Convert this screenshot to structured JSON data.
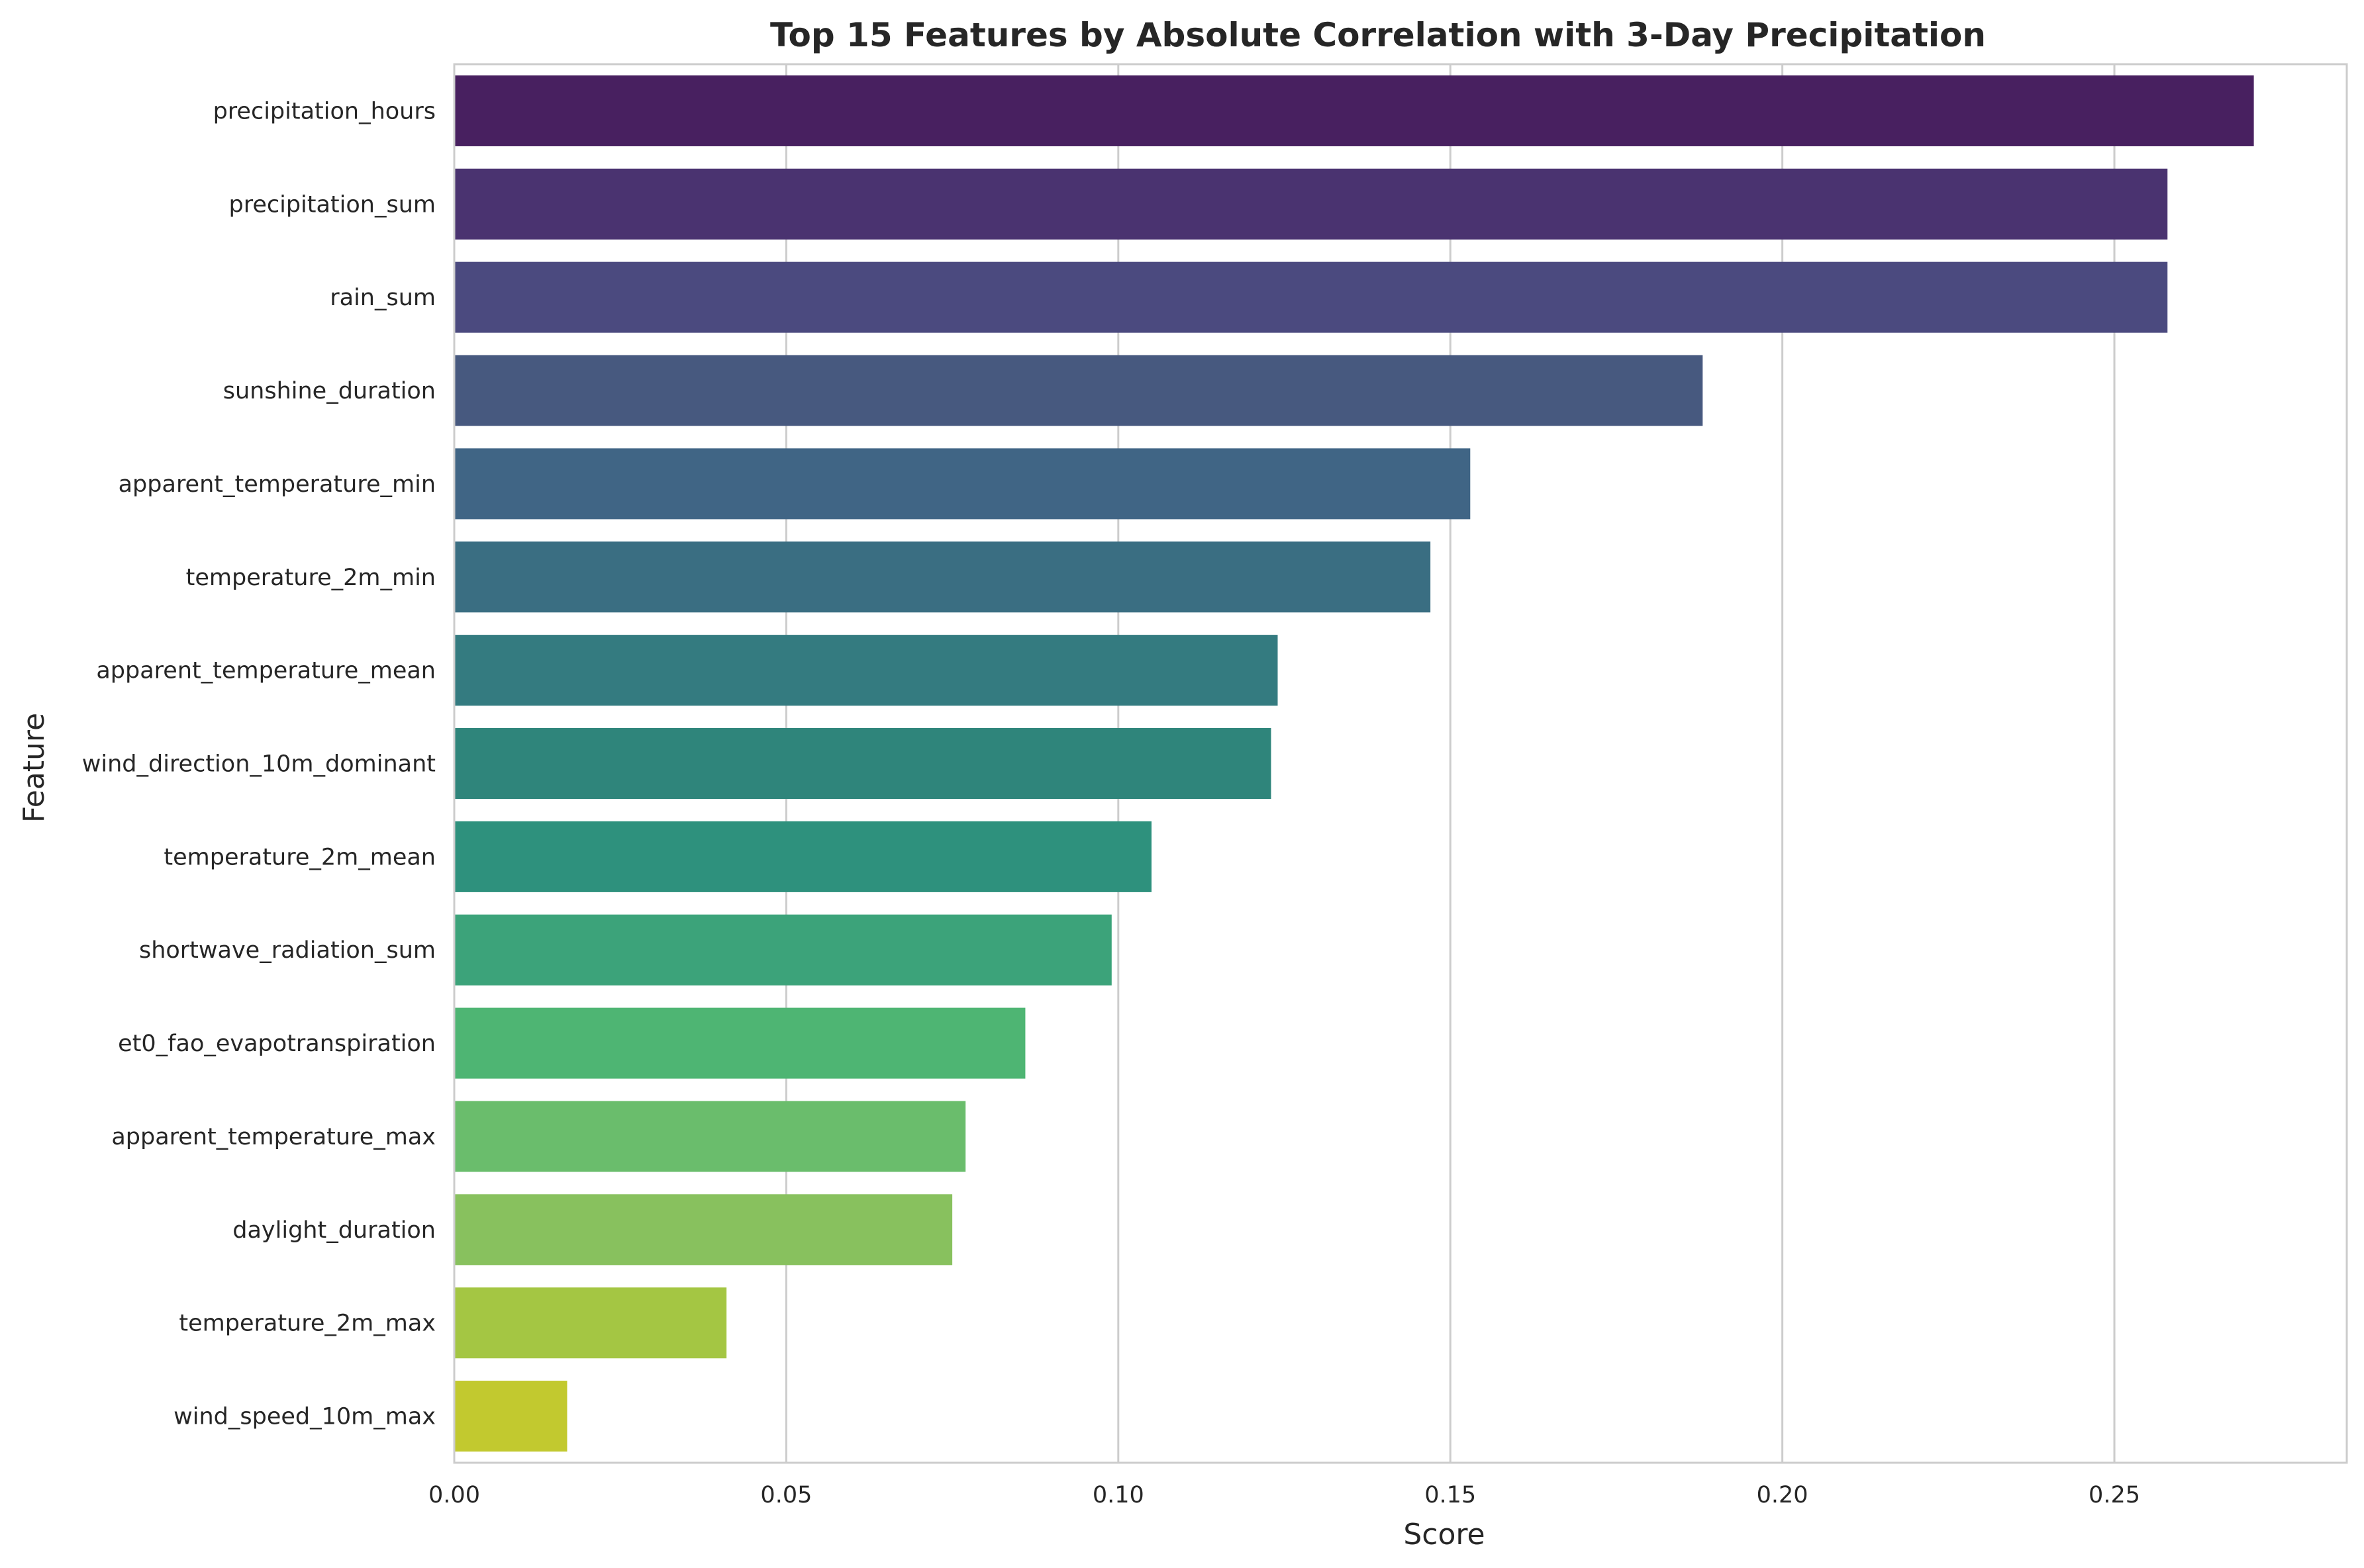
{
  "chart_data": {
    "type": "bar",
    "orientation": "horizontal",
    "title": "Top 15 Features by Absolute Correlation with 3-Day Precipitation",
    "xlabel": "Score",
    "ylabel": "Feature",
    "xlim": [
      0,
      0.285
    ],
    "xticks": [
      0.0,
      0.05,
      0.1,
      0.15,
      0.2,
      0.25
    ],
    "xtick_labels": [
      "0.00",
      "0.05",
      "0.10",
      "0.15",
      "0.20",
      "0.25"
    ],
    "grid": "vertical",
    "legend": "none",
    "categories": [
      "precipitation_hours",
      "precipitation_sum",
      "rain_sum",
      "sunshine_duration",
      "apparent_temperature_min",
      "temperature_2m_min",
      "apparent_temperature_mean",
      "wind_direction_10m_dominant",
      "temperature_2m_mean",
      "shortwave_radiation_sum",
      "et0_fao_evapotranspiration",
      "apparent_temperature_max",
      "daylight_duration",
      "temperature_2m_max",
      "wind_speed_10m_max"
    ],
    "values": [
      0.271,
      0.258,
      0.258,
      0.188,
      0.153,
      0.147,
      0.124,
      0.123,
      0.105,
      0.099,
      0.086,
      0.077,
      0.075,
      0.041,
      0.017
    ],
    "colors": [
      "#482060",
      "#4a3370",
      "#4b4a7f",
      "#47597f",
      "#406585",
      "#3a6e82",
      "#347b80",
      "#2f857b",
      "#2e917d",
      "#3ca37a",
      "#4eb573",
      "#6abd6c",
      "#88c15e",
      "#a4c643",
      "#c2c92f"
    ]
  }
}
